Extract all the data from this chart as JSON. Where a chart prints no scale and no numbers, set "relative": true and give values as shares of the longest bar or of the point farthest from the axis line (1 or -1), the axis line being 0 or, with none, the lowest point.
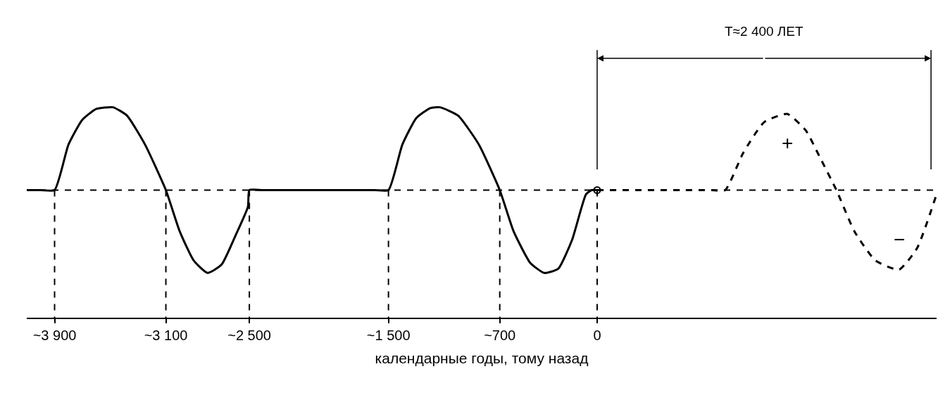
{
  "chart_data": {
    "type": "line",
    "relative": true,
    "xlabel": "календарные годы, тому назад",
    "xlim": [
      -4100,
      2440
    ],
    "xticks": [
      {
        "value": -3900,
        "label": "~3 900"
      },
      {
        "value": -3100,
        "label": "~3 100"
      },
      {
        "value": -2500,
        "label": "~2 500"
      },
      {
        "value": -1500,
        "label": "~1 500"
      },
      {
        "value": -700,
        "label": "~700"
      },
      0
    ],
    "grid": false,
    "marker": "none",
    "series": [
      {
        "color": "#000000",
        "line_style": "solid",
        "x": [
          -4100,
          -4000,
          -3900,
          -3800,
          -3700,
          -3600,
          -3480,
          -3380,
          -3250,
          -3100,
          -3000,
          -2900,
          -2800,
          -2700,
          -2600,
          -2510,
          -2500,
          -2400,
          -2000,
          -1600,
          -1500,
          -1400,
          -1300,
          -1200,
          -1130,
          -1000,
          -850,
          -700,
          -600,
          -480,
          -380,
          -280,
          -180,
          -80,
          -40,
          0
        ],
        "values": [
          0,
          0,
          0,
          0.55,
          0.85,
          0.98,
          1,
          0.9,
          0.55,
          0,
          -0.5,
          -0.85,
          -1,
          -0.9,
          -0.55,
          -0.2,
          0,
          0,
          0,
          0,
          0,
          0.55,
          0.87,
          0.99,
          1,
          0.9,
          0.55,
          0,
          -0.5,
          -0.88,
          -1,
          -0.95,
          -0.6,
          -0.05,
          0,
          0
        ]
      },
      {
        "color": "#000000",
        "line_style": "dashed",
        "x": [
          0,
          300,
          600,
          820,
          920,
          1050,
          1200,
          1366,
          1500,
          1600,
          1720,
          1850,
          2000,
          2170,
          2300,
          2440
        ],
        "values": [
          0,
          0,
          0,
          0,
          0,
          0.45,
          0.82,
          0.92,
          0.72,
          0.4,
          0,
          -0.5,
          -0.85,
          -0.96,
          -0.7,
          -0.05
        ]
      },
      {
        "type": "scatter",
        "marker": "circle",
        "color": "#000000",
        "x": [
          0
        ],
        "values": [
          0
        ]
      }
    ],
    "ref_lines": [
      {
        "axis": "y",
        "value": 0,
        "line_style": "dashed",
        "color": "#000000"
      },
      {
        "axis": "x",
        "value": -3900,
        "line_style": "dashed",
        "color": "#000000"
      },
      {
        "axis": "x",
        "value": -3100,
        "line_style": "dashed",
        "color": "#000000"
      },
      {
        "axis": "x",
        "value": -2500,
        "line_style": "dashed",
        "color": "#000000"
      },
      {
        "axis": "x",
        "value": -1500,
        "line_style": "dashed",
        "color": "#000000"
      },
      {
        "axis": "x",
        "value": -700,
        "line_style": "dashed",
        "color": "#000000"
      },
      {
        "axis": "x",
        "value": 0,
        "line_style": "solid",
        "color": "#000000"
      },
      {
        "axis": "x",
        "value": 0,
        "line_style": "dashed",
        "color": "#000000"
      },
      {
        "axis": "x",
        "value": 2400,
        "line_style": "solid",
        "color": "#000000"
      }
    ],
    "annotations": [
      "T≈2 400 ЛЕТ",
      "+",
      "−"
    ]
  }
}
